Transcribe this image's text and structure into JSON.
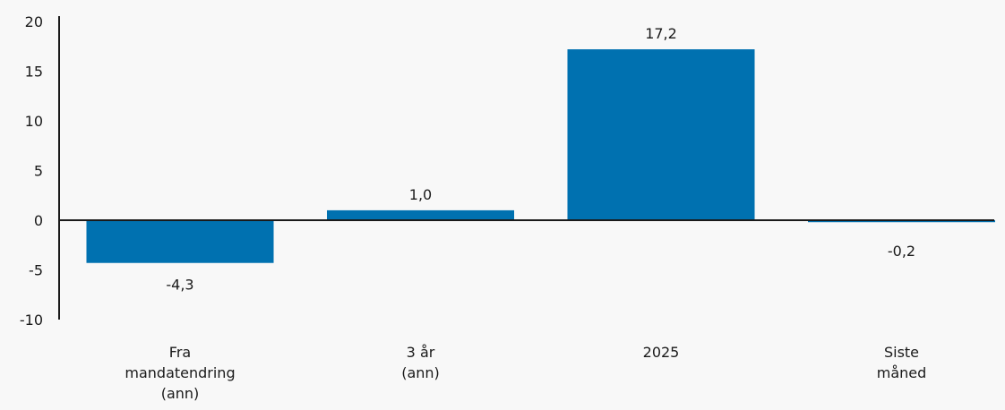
{
  "chart_data": {
    "type": "bar",
    "title": "",
    "xlabel": "",
    "ylabel": "",
    "categories": [
      [
        "Fra",
        "mandatendring",
        "(ann)"
      ],
      [
        "3 år",
        "(ann)"
      ],
      [
        "2025"
      ],
      [
        "Siste",
        "måned"
      ]
    ],
    "values": [
      -4.3,
      1.0,
      17.2,
      -0.2
    ],
    "data_labels": [
      "-4,3",
      "1,0",
      "17,2",
      "-0,2"
    ],
    "ylim": [
      -10,
      20
    ],
    "yticks": [
      20,
      15,
      10,
      5,
      0,
      -5,
      -10
    ],
    "grid": false,
    "legend": "none",
    "bar_color": "#0071b0"
  }
}
